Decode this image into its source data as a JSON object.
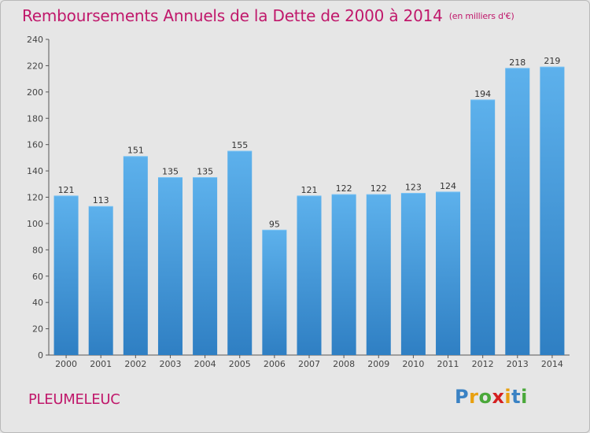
{
  "title": "Remboursements Annuels de la Dette de 2000 à 2014",
  "unit": "(en milliers d'€)",
  "commune": "PLEUMELEUC",
  "logo": {
    "letters": [
      "P",
      "r",
      "o",
      "x",
      "i",
      "t",
      "i"
    ],
    "colors": [
      "#3a82c4",
      "#e8a010",
      "#4aa83a",
      "#d42020",
      "#e8a010",
      "#3a82c4",
      "#4aa83a"
    ]
  },
  "colors": {
    "bar": "#3a8fd8",
    "bar_light": "#5db1ec",
    "title": "#c0186b",
    "axis": "#555555"
  },
  "chart_data": {
    "type": "bar",
    "categories": [
      "2000",
      "2001",
      "2002",
      "2003",
      "2004",
      "2005",
      "2006",
      "2007",
      "2008",
      "2009",
      "2010",
      "2011",
      "2012",
      "2013",
      "2014"
    ],
    "values": [
      121,
      113,
      151,
      135,
      135,
      155,
      95,
      121,
      122,
      122,
      123,
      124,
      194,
      218,
      219
    ],
    "ylim": [
      0,
      240
    ],
    "yticks": [
      0,
      20,
      40,
      60,
      80,
      100,
      120,
      140,
      160,
      180,
      200,
      220,
      240
    ],
    "grid": false
  }
}
